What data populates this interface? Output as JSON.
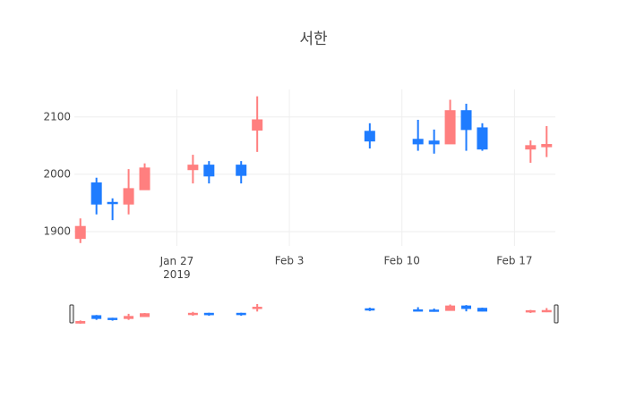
{
  "chart_data": {
    "type": "candlestick",
    "title": "서한",
    "x": [
      "2019-01-21",
      "2019-01-22",
      "2019-01-23",
      "2019-01-24",
      "2019-01-25",
      "2019-01-28",
      "2019-01-29",
      "2019-01-31",
      "2019-02-01",
      "2019-02-08",
      "2019-02-11",
      "2019-02-12",
      "2019-02-13",
      "2019-02-14",
      "2019-02-15",
      "2019-02-18",
      "2019-02-19"
    ],
    "open": [
      1888,
      1985,
      1951,
      1948,
      1973,
      2008,
      2016,
      2016,
      2077,
      2075,
      2061,
      2058,
      2053,
      2111,
      2081,
      2044,
      2048
    ],
    "high": [
      1923,
      1994,
      1958,
      2009,
      2019,
      2034,
      2023,
      2023,
      2136,
      2089,
      2095,
      2078,
      2130,
      2123,
      2089,
      2059,
      2084
    ],
    "low": [
      1880,
      1930,
      1920,
      1930,
      1973,
      1984,
      1984,
      1984,
      2039,
      2045,
      2041,
      2036,
      2053,
      2041,
      2041,
      2020,
      2030
    ],
    "close": [
      1909,
      1948,
      1949,
      1975,
      2011,
      2016,
      1997,
      1998,
      2095,
      2058,
      2053,
      2053,
      2111,
      2078,
      2044,
      2050,
      2052
    ],
    "increasing_color": "#ff7f7f",
    "decreasing_color": "#1f7cff",
    "xlim": [
      "2019-01-20T15:00",
      "2019-02-19T13:00"
    ],
    "xticks": [
      {
        "value": "2019-01-27",
        "label": "Jan 27\n2019"
      },
      {
        "value": "2019-02-03",
        "label": "Feb 3"
      },
      {
        "value": "2019-02-10",
        "label": "Feb 10"
      },
      {
        "value": "2019-02-17",
        "label": "Feb 17"
      }
    ],
    "ylim": [
      1875,
      2148
    ],
    "yticks": [
      1900,
      2000,
      2100
    ],
    "grid": true,
    "rangeslider": true
  }
}
